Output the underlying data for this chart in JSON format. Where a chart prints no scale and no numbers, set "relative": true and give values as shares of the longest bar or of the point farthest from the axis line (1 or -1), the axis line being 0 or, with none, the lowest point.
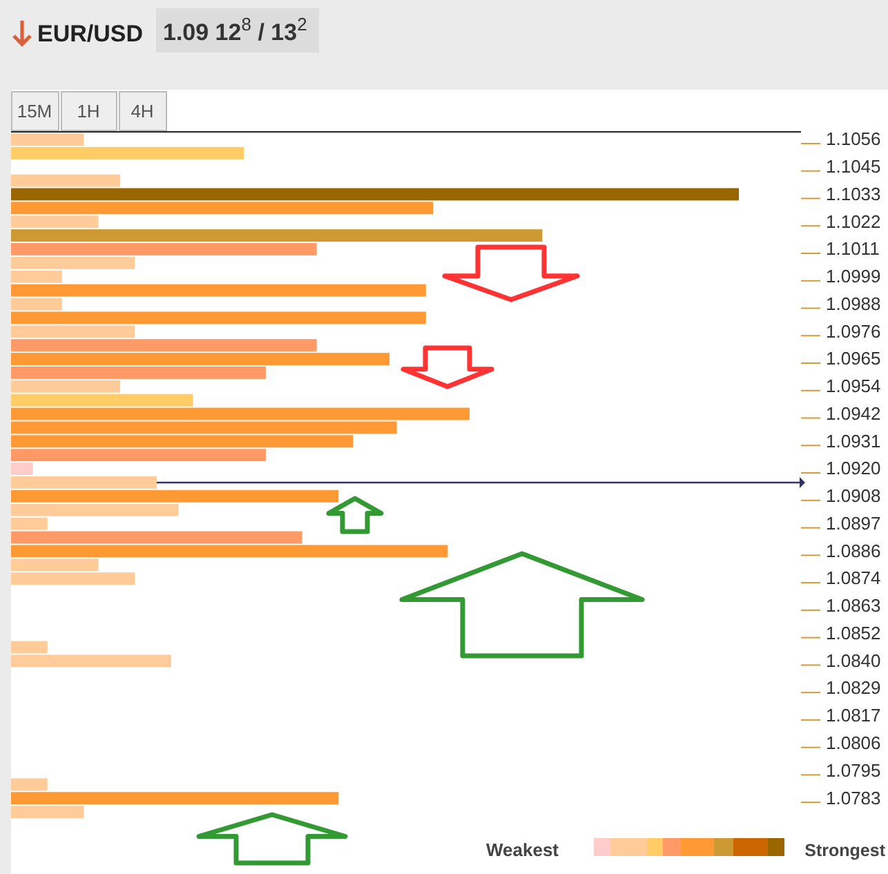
{
  "chart_data": {
    "type": "bar",
    "orientation": "horizontal",
    "relative": true,
    "title": "EUR/USD",
    "annotations": [
      "1.09 12$^{8}$ / 13$^{2}$",
      "15M",
      "1H",
      "4H",
      "Weakest",
      "Strongest"
    ],
    "categories": [
      "1.1056",
      null,
      "1.1045",
      null,
      "1.1033",
      null,
      "1.1022",
      null,
      "1.1011",
      null,
      "1.0999",
      null,
      "1.0988",
      null,
      "1.0976",
      null,
      "1.0965",
      null,
      "1.0954",
      null,
      "1.0942",
      null,
      "1.0931",
      null,
      "1.0920",
      null,
      "1.0908",
      null,
      "1.0897",
      null,
      "1.0886",
      null,
      "1.0874",
      null,
      "1.0863",
      null,
      "1.0852",
      null,
      "1.0840",
      null,
      "1.0829",
      null,
      "1.0817",
      null,
      "1.0806",
      null,
      "1.0795",
      null,
      "1.0783",
      null
    ],
    "values": [
      0.1,
      0.32,
      null,
      0.15,
      1,
      0.58,
      0.12,
      0.73,
      0.42,
      0.17,
      0.07,
      0.57,
      0.07,
      0.57,
      0.17,
      0.42,
      0.52,
      0.35,
      0.15,
      0.25,
      0.63,
      0.53,
      0.47,
      0.35,
      0.03,
      0.2,
      0.45,
      0.23,
      0.05,
      0.4,
      0.6,
      0.12,
      0.17,
      null,
      null,
      null,
      null,
      0.05,
      0.22,
      null,
      null,
      null,
      null,
      null,
      null,
      null,
      null,
      0.05,
      0.45,
      0.1
    ],
    "colors": [
      "#ffcc99",
      "#ffcc66",
      null,
      "#ffcc99",
      "#996600",
      "#ff9933",
      "#ffcc99",
      "#cc9933",
      "#ff9966",
      "#ffcc99",
      "#ffcc99",
      "#ff9933",
      "#ffcc99",
      "#ff9933",
      "#ffcc99",
      "#ff9966",
      "#ff9933",
      "#ff9966",
      "#ffcc99",
      "#ffcc66",
      "#ff9933",
      "#ff9933",
      "#ff9933",
      "#ff9966",
      "#ffcccc",
      "#ffcc99",
      "#ff9933",
      "#ffcc99",
      "#ffcc99",
      "#ff9966",
      "#ff9933",
      "#ffcc99",
      "#ffcc99",
      null,
      null,
      null,
      null,
      "#ffcc99",
      "#ffcc99",
      null,
      null,
      null,
      null,
      null,
      null,
      null,
      null,
      "#ffcc99",
      "#ff9933",
      "#ffcc99"
    ]
  }
}
